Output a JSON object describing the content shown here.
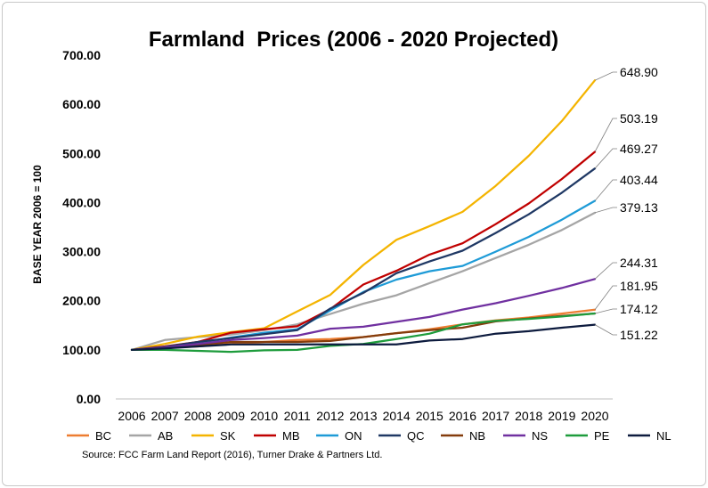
{
  "chart_data": {
    "type": "line",
    "title": "Farmland  Prices (2006 - 2020 Projected)",
    "ylabel": "BASE YEAR 2006 = 100",
    "xlabel": "",
    "ylim": [
      0,
      700
    ],
    "yticks": [
      "0.00",
      "100.00",
      "200.00",
      "300.00",
      "400.00",
      "500.00",
      "600.00",
      "700.00"
    ],
    "ytick_values": [
      0,
      100,
      200,
      300,
      400,
      500,
      600,
      700
    ],
    "x": [
      "2006",
      "2007",
      "2008",
      "2009",
      "2010",
      "2011",
      "2012",
      "2013",
      "2014",
      "2015",
      "2016",
      "2017",
      "2018",
      "2019",
      "2020"
    ],
    "grid": false,
    "legend_position": "bottom",
    "series": [
      {
        "name": "BC",
        "color": "#ED7D31",
        "values": [
          100,
          104,
          107,
          112,
          116,
          120,
          122,
          126,
          134,
          142,
          152,
          160,
          166,
          174,
          181.95
        ]
      },
      {
        "name": "AB",
        "color": "#A5A5A5",
        "values": [
          100,
          120,
          126,
          131,
          140,
          152,
          173,
          194,
          211,
          236,
          260,
          287,
          314,
          344,
          379.13
        ]
      },
      {
        "name": "SK",
        "color": "#F4B400",
        "values": [
          100,
          112,
          127,
          136,
          144,
          178,
          212,
          273,
          324,
          352,
          381,
          434,
          495,
          566,
          648.9
        ]
      },
      {
        "name": "MB",
        "color": "#C00000",
        "values": [
          100,
          107,
          116,
          135,
          142,
          148,
          183,
          233,
          261,
          294,
          317,
          356,
          398,
          448,
          503.19
        ]
      },
      {
        "name": "ON",
        "color": "#1E9BD7",
        "values": [
          100,
          103,
          114,
          125,
          135,
          142,
          180,
          218,
          243,
          260,
          271,
          300,
          330,
          365,
          403.44
        ]
      },
      {
        "name": "QC",
        "color": "#1F3864",
        "values": [
          100,
          106,
          116,
          124,
          132,
          140,
          184,
          216,
          256,
          280,
          302,
          338,
          376,
          420,
          469.27
        ]
      },
      {
        "name": "NB",
        "color": "#843C0C",
        "values": [
          100,
          103,
          110,
          116,
          116,
          116,
          118,
          126,
          134,
          140,
          145,
          158,
          164,
          169,
          174.12
        ]
      },
      {
        "name": "NS",
        "color": "#7030A0",
        "values": [
          100,
          105,
          112,
          120,
          124,
          129,
          143,
          147,
          157,
          167,
          182,
          195,
          210,
          226,
          244.31
        ]
      },
      {
        "name": "PE",
        "color": "#1E9C3C",
        "values": [
          100,
          100,
          98,
          96,
          99,
          100,
          108,
          112,
          122,
          133,
          152,
          159,
          163,
          168,
          174.12
        ]
      },
      {
        "name": "NL",
        "color": "#0D1B3E",
        "values": [
          100,
          103,
          107,
          111,
          111,
          111,
          111,
          111,
          111,
          119,
          122,
          133,
          138,
          145,
          151.22
        ]
      }
    ],
    "end_labels": [
      "648.90",
      "503.19",
      "469.27",
      "403.44",
      "379.13",
      "244.31",
      "181.95",
      "174.12",
      "151.22"
    ],
    "source": "Source: FCC Farm Land Report (2016), Turner Drake & Partners Ltd."
  }
}
